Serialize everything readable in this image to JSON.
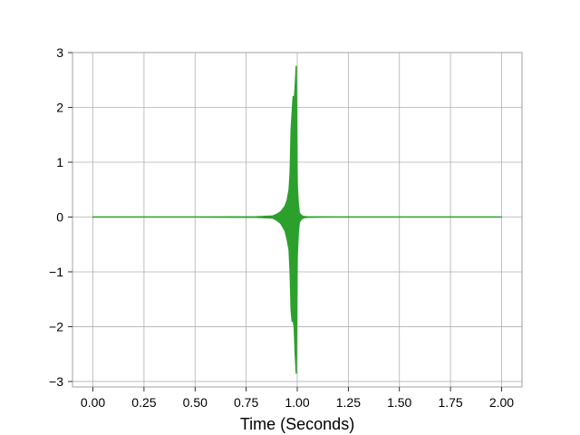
{
  "chart_data": {
    "type": "line",
    "xlabel": "Time (Seconds)",
    "ylabel": "",
    "xlim": [
      -0.1,
      2.1
    ],
    "ylim": [
      -3.1,
      3.0
    ],
    "x_ticks": [
      0.0,
      0.25,
      0.5,
      0.75,
      1.0,
      1.25,
      1.5,
      1.75,
      2.0
    ],
    "x_tick_labels": [
      "0.00",
      "0.25",
      "0.50",
      "0.75",
      "1.00",
      "1.25",
      "1.50",
      "1.75",
      "2.00"
    ],
    "y_ticks": [
      -3,
      -2,
      -1,
      0,
      1,
      2,
      3
    ],
    "y_tick_labels": [
      "−3",
      "−2",
      "−1",
      "0",
      "1",
      "2",
      "3"
    ],
    "grid": true,
    "line_color": "#2ca02c",
    "series": [
      {
        "x": [
          0.0,
          0.5,
          0.8,
          0.88,
          0.9,
          0.92,
          0.94,
          0.95,
          0.96,
          0.965,
          0.97,
          0.975,
          0.98,
          0.985,
          0.99,
          0.995,
          1.0,
          1.005,
          1.01,
          1.02,
          1.03,
          1.05,
          1.1,
          1.2,
          1.5,
          2.0
        ],
        "y_upper": [
          0.0,
          0.0,
          0.005,
          0.02,
          0.05,
          0.1,
          0.2,
          0.3,
          0.5,
          0.8,
          1.6,
          1.9,
          2.2,
          2.1,
          2.4,
          2.75,
          0.6,
          0.25,
          0.08,
          0.03,
          0.01,
          0.005,
          0.002,
          0.0,
          0.0,
          0.0
        ],
        "y_lower": [
          0.0,
          0.0,
          -0.005,
          -0.02,
          -0.06,
          -0.12,
          -0.25,
          -0.4,
          -0.6,
          -1.0,
          -1.7,
          -1.9,
          -1.9,
          -2.0,
          -2.5,
          -2.85,
          -0.7,
          -0.3,
          -0.1,
          -0.04,
          -0.015,
          -0.006,
          -0.002,
          0.0,
          0.0,
          0.0
        ]
      }
    ]
  }
}
